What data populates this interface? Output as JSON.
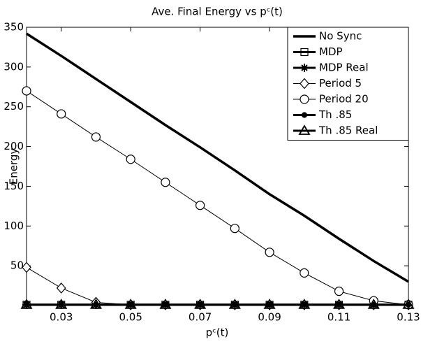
{
  "chart_data": {
    "type": "line",
    "title": "Ave. Final Energy vs pᶜ(t)",
    "x_label": "pᶜ(t)",
    "y_label": "Energy",
    "x": [
      0.02,
      0.03,
      0.04,
      0.05,
      0.06,
      0.07,
      0.08,
      0.09,
      0.1,
      0.11,
      0.12,
      0.13
    ],
    "xlim": [
      0.02,
      0.13
    ],
    "xticks": [
      0.03,
      0.05,
      0.07,
      0.09,
      0.11,
      0.13
    ],
    "ylim": [
      0,
      350
    ],
    "yticks": [
      50,
      100,
      150,
      200,
      250,
      300,
      350
    ],
    "legend": "upper right",
    "series": [
      {
        "name": "No Sync",
        "color": "#000000",
        "line_width": 3.5,
        "marker": "none",
        "values": [
          342,
          314,
          285,
          256,
          227,
          199,
          170,
          140,
          113,
          84,
          56,
          30
        ]
      },
      {
        "name": "MDP",
        "color": "#000000",
        "line_width": 3,
        "marker": "square",
        "values": [
          1,
          1,
          1,
          1,
          1,
          1,
          1,
          1,
          1,
          1,
          1,
          1
        ]
      },
      {
        "name": "MDP Real",
        "color": "#000000",
        "line_width": 3,
        "marker": "asterisk",
        "values": [
          1,
          1,
          1,
          1,
          1,
          1,
          1,
          1,
          1,
          1,
          1,
          1
        ]
      },
      {
        "name": "Period 5",
        "color": "#000000",
        "line_width": 1,
        "marker": "diamond",
        "values": [
          48,
          22,
          4,
          1,
          1,
          1,
          1,
          1,
          1,
          1,
          1,
          1
        ]
      },
      {
        "name": "Period 20",
        "color": "#000000",
        "line_width": 1,
        "marker": "circle",
        "values": [
          270,
          241,
          212,
          184,
          155,
          126,
          97,
          67,
          41,
          18,
          6,
          1
        ]
      },
      {
        "name": "Th .85",
        "color": "#000000",
        "line_width": 3,
        "marker": "dot",
        "values": [
          1,
          1,
          1,
          1,
          1,
          1,
          1,
          1,
          1,
          1,
          1,
          1
        ]
      },
      {
        "name": "Th .85 Real",
        "color": "#000000",
        "line_width": 3,
        "marker": "triangle",
        "values": [
          1,
          1,
          1,
          1,
          1,
          1,
          1,
          1,
          1,
          1,
          1,
          1
        ]
      }
    ]
  }
}
